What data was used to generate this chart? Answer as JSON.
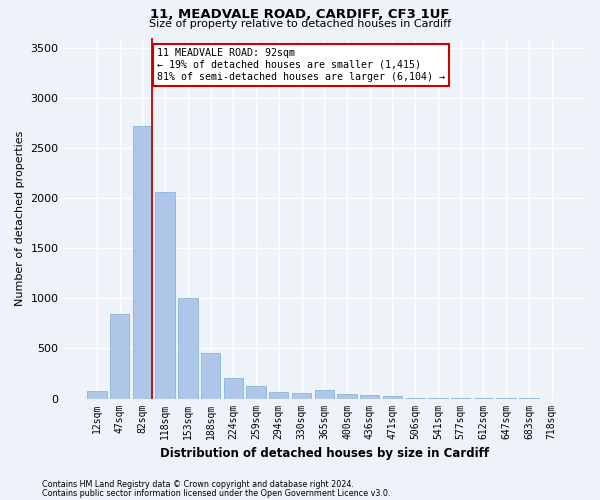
{
  "title1": "11, MEADVALE ROAD, CARDIFF, CF3 1UF",
  "title2": "Size of property relative to detached houses in Cardiff",
  "xlabel": "Distribution of detached houses by size in Cardiff",
  "ylabel": "Number of detached properties",
  "categories": [
    "12sqm",
    "47sqm",
    "82sqm",
    "118sqm",
    "153sqm",
    "188sqm",
    "224sqm",
    "259sqm",
    "294sqm",
    "330sqm",
    "365sqm",
    "400sqm",
    "436sqm",
    "471sqm",
    "506sqm",
    "541sqm",
    "577sqm",
    "612sqm",
    "647sqm",
    "683sqm",
    "718sqm"
  ],
  "values": [
    75,
    840,
    2720,
    2060,
    1000,
    450,
    200,
    130,
    70,
    55,
    85,
    50,
    35,
    30,
    5,
    3,
    2,
    1,
    1,
    1,
    0
  ],
  "bar_color": "#aec6e8",
  "bar_edge_color": "#7bafd4",
  "marker_label": "11 MEADVALE ROAD: 92sqm",
  "annotation_line1": "← 19% of detached houses are smaller (1,415)",
  "annotation_line2": "81% of semi-detached houses are larger (6,104) →",
  "annotation_box_color": "#cc0000",
  "ylim": [
    0,
    3600
  ],
  "yticks": [
    0,
    500,
    1000,
    1500,
    2000,
    2500,
    3000,
    3500
  ],
  "bg_color": "#eef2f9",
  "grid_color": "#ffffff",
  "footnote1": "Contains HM Land Registry data © Crown copyright and database right 2024.",
  "footnote2": "Contains public sector information licensed under the Open Government Licence v3.0."
}
